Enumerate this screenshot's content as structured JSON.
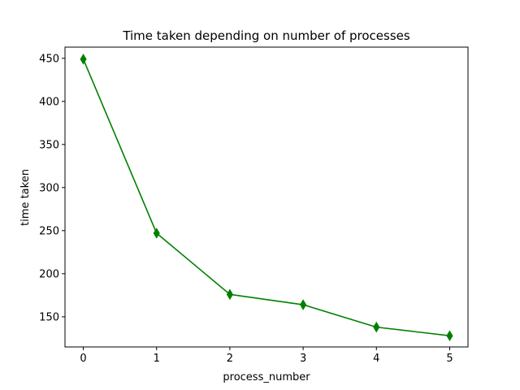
{
  "chart_data": {
    "type": "line",
    "title": "Time taken depending on number of processes",
    "xlabel": "process_number",
    "ylabel": "time taken",
    "x": [
      0,
      1,
      2,
      3,
      4,
      5
    ],
    "xticks": [
      "0",
      "1",
      "2",
      "3",
      "4",
      "5"
    ],
    "yticks": [
      "150",
      "200",
      "250",
      "300",
      "350",
      "400",
      "450"
    ],
    "xlim": [
      -0.25,
      5.25
    ],
    "ylim": [
      115,
      463
    ],
    "grid": false,
    "series": [
      {
        "values": [
          449,
          247,
          176,
          164,
          138,
          128
        ],
        "color": "#008000",
        "marker": "thin-diamond"
      }
    ]
  }
}
